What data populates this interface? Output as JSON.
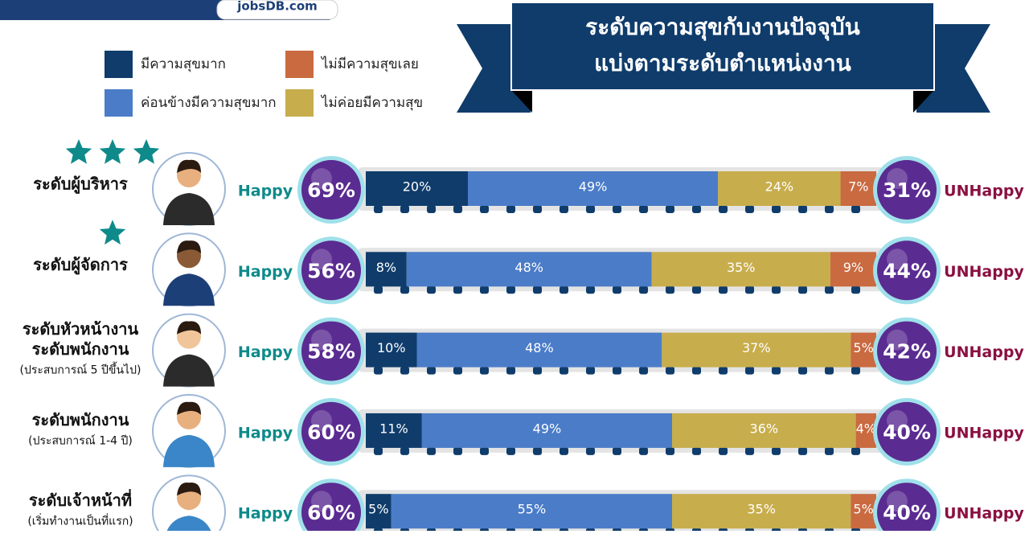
{
  "header": {
    "logo": "jobsDB.com"
  },
  "chart_data": {
    "type": "stacked-bar",
    "title": "ระดับความสุขกับงานปัจจุบัน",
    "subtitle": "แบ่งตามระดับตำแหน่งงาน",
    "categories": [
      [
        "ระดับผู้บริหาร"
      ],
      [
        "ระดับผู้จัดการ"
      ],
      [
        "ระดับหัวหน้างาน",
        "ระดับพนักงาน",
        "(ประสบการณ์ 5 ปีขึ้นไป)"
      ],
      [
        "ระดับพนักงาน",
        "(ประสบการณ์ 1-4 ปี)"
      ],
      [
        "ระดับเจ้าหน้าที่",
        "(เริ่มทำงานเป็นที่แรก)"
      ]
    ],
    "stars": [
      3,
      1,
      0,
      0,
      0
    ],
    "happy_label": "Happy",
    "unhappy_label": "UNHappy",
    "happy": [
      69,
      56,
      58,
      60,
      60
    ],
    "happy_labels": [
      "69%",
      "56%",
      "58%",
      "60%",
      "60%"
    ],
    "unhappy": [
      31,
      44,
      42,
      40,
      40
    ],
    "unhappy_labels": [
      "31%",
      "44%",
      "42%",
      "40%",
      "40%"
    ],
    "series": [
      {
        "name": "มีความสุขมาก",
        "color": "#0f3c6b",
        "values": [
          20,
          8,
          10,
          11,
          5
        ],
        "value_labels": [
          "20%",
          "8%",
          "10%",
          "11%",
          "5%"
        ]
      },
      {
        "name": "ค่อนข้างมีความสุขมาก",
        "color": "#4a7cc8",
        "values": [
          49,
          48,
          48,
          49,
          55
        ],
        "value_labels": [
          "49%",
          "48%",
          "48%",
          "49%",
          "55%"
        ]
      },
      {
        "name": "ไม่ค่อยมีความสุข",
        "color": "#c8ad4c",
        "values": [
          24,
          35,
          37,
          36,
          35
        ],
        "value_labels": [
          "24%",
          "35%",
          "37%",
          "36%",
          "35%"
        ]
      },
      {
        "name": "ไม่มีความสุขเลย",
        "color": "#c96a40",
        "values": [
          7,
          9,
          5,
          4,
          5
        ],
        "value_labels": [
          "7%",
          "9%",
          "5%",
          "4%",
          "5%"
        ]
      }
    ]
  }
}
